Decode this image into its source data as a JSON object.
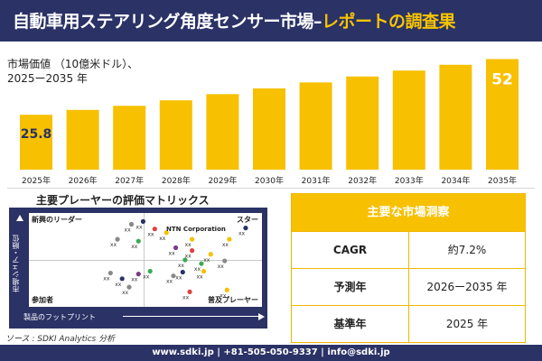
{
  "header": {
    "title_main": "自動車用ステアリング角度センサー市場",
    "title_dash": "–",
    "title_highlight": "レポートの調査果"
  },
  "chart_caption": {
    "line1": "市場価値 （10億米ドル）、",
    "line2": "2025ー2035 年"
  },
  "chart_data": {
    "type": "bar",
    "categories": [
      "2025年",
      "2026年",
      "2027年",
      "2028年",
      "2029年",
      "2030年",
      "2031年",
      "2032年",
      "2033年",
      "2034年",
      "2035年"
    ],
    "values": [
      25.8,
      28.1,
      30.0,
      32.6,
      35.5,
      38.2,
      41.0,
      43.8,
      46.6,
      49.3,
      52
    ],
    "value_labels": {
      "0": "25.8",
      "10": "52"
    },
    "bar_color": "#f7c000",
    "title": "",
    "xlabel": "",
    "ylabel": "",
    "ylim": [
      0,
      56
    ]
  },
  "matrix": {
    "title": "主要プレーヤーの評価マトリックス",
    "q_top_left": "新興のリーダー",
    "q_top_right": "スター",
    "q_bottom_left": "参加者",
    "q_bottom_right": "普及プレーヤー",
    "axis_x": "製品のフットプリント",
    "axis_y": "市場シェア・順位",
    "company_label": "NTN Corporation",
    "marker_label": "xx",
    "points": [
      {
        "x": 0.38,
        "y": 0.72,
        "c": "#888888"
      },
      {
        "x": 0.44,
        "y": 0.88,
        "c": "#888888"
      },
      {
        "x": 0.49,
        "y": 0.91,
        "c": "#2a3266"
      },
      {
        "x": 0.54,
        "y": 0.83,
        "c": "#e04040"
      },
      {
        "x": 0.59,
        "y": 0.79,
        "c": "#f7c000"
      },
      {
        "x": 0.47,
        "y": 0.7,
        "c": "#3aaa55"
      },
      {
        "x": 0.35,
        "y": 0.36,
        "c": "#888888"
      },
      {
        "x": 0.4,
        "y": 0.3,
        "c": "#2a3266"
      },
      {
        "x": 0.43,
        "y": 0.21,
        "c": "#888888"
      },
      {
        "x": 0.47,
        "y": 0.35,
        "c": "#7a3a8a"
      },
      {
        "x": 0.52,
        "y": 0.38,
        "c": "#3aaa55"
      },
      {
        "x": 0.63,
        "y": 0.63,
        "c": "#7a3a8a"
      },
      {
        "x": 0.7,
        "y": 0.72,
        "c": "#f7c000"
      },
      {
        "x": 0.67,
        "y": 0.5,
        "c": "#3aaa55"
      },
      {
        "x": 0.7,
        "y": 0.6,
        "c": "#e04040"
      },
      {
        "x": 0.74,
        "y": 0.46,
        "c": "#3aaa55"
      },
      {
        "x": 0.78,
        "y": 0.56,
        "c": "#f7c000"
      },
      {
        "x": 0.84,
        "y": 0.49,
        "c": "#888888"
      },
      {
        "x": 0.62,
        "y": 0.33,
        "c": "#888888"
      },
      {
        "x": 0.66,
        "y": 0.37,
        "c": "#2a3266"
      },
      {
        "x": 0.75,
        "y": 0.38,
        "c": "#f7c000"
      },
      {
        "x": 0.69,
        "y": 0.16,
        "c": "#e04040"
      },
      {
        "x": 0.85,
        "y": 0.18,
        "c": "#f7c000"
      },
      {
        "x": 0.93,
        "y": 0.84,
        "c": "#2a3266"
      },
      {
        "x": 0.86,
        "y": 0.72,
        "c": "#f7c000"
      }
    ]
  },
  "table": {
    "header": "主要な市場洞察",
    "rows": [
      {
        "key": "CAGR",
        "value": "約7.2%"
      },
      {
        "key": "予測年",
        "value": "2026ー2035 年"
      },
      {
        "key": "基準年",
        "value": "2025 年"
      }
    ]
  },
  "source": "ソース : SDKI Analytics 分析",
  "footer": "www.sdki.jp | +81-505-050-9337 | info@sdki.jp"
}
